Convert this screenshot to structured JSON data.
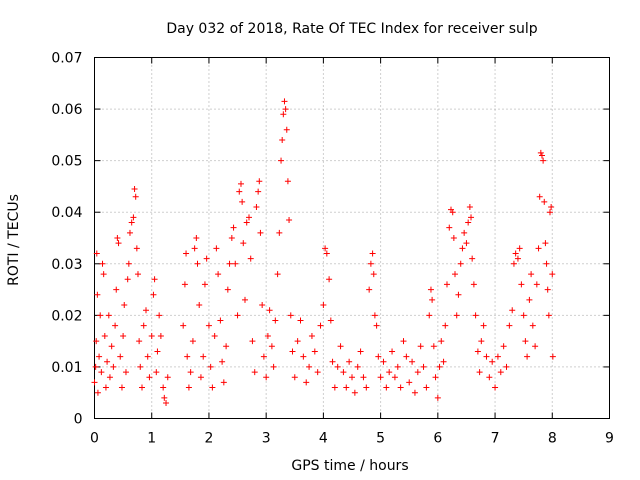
{
  "chart_data": {
    "type": "scatter",
    "title": "Day 032 of 2018, Rate Of TEC Index for receiver sulp",
    "xlabel": "GPS time / hours",
    "ylabel": "ROTI / TECUs",
    "xlim": [
      0,
      9
    ],
    "ylim": [
      0,
      0.07
    ],
    "xticks": [
      0,
      1,
      2,
      3,
      4,
      5,
      6,
      7,
      8,
      9
    ],
    "xtick_labels": [
      "0",
      "1",
      "2",
      "3",
      "4",
      "5",
      "6",
      "7",
      "8",
      "9"
    ],
    "yticks": [
      0,
      0.01,
      0.02,
      0.03,
      0.04,
      0.05,
      0.06,
      0.07
    ],
    "ytick_labels": [
      "0",
      "0.01",
      "0.02",
      "0.03",
      "0.04",
      "0.05",
      "0.06",
      "0.07"
    ],
    "grid": true,
    "marker": "+",
    "color": "#ff0000",
    "series": [
      {
        "name": "ROTI",
        "points": [
          [
            0.0,
            0.007
          ],
          [
            0.02,
            0.01
          ],
          [
            0.03,
            0.015
          ],
          [
            0.04,
            0.032
          ],
          [
            0.05,
            0.024
          ],
          [
            0.06,
            0.005
          ],
          [
            0.08,
            0.012
          ],
          [
            0.1,
            0.02
          ],
          [
            0.12,
            0.009
          ],
          [
            0.14,
            0.03
          ],
          [
            0.16,
            0.028
          ],
          [
            0.18,
            0.016
          ],
          [
            0.2,
            0.006
          ],
          [
            0.22,
            0.011
          ],
          [
            0.25,
            0.02
          ],
          [
            0.27,
            0.008
          ],
          [
            0.3,
            0.014
          ],
          [
            0.33,
            0.01
          ],
          [
            0.36,
            0.018
          ],
          [
            0.38,
            0.025
          ],
          [
            0.4,
            0.035
          ],
          [
            0.42,
            0.034
          ],
          [
            0.45,
            0.012
          ],
          [
            0.48,
            0.006
          ],
          [
            0.5,
            0.016
          ],
          [
            0.52,
            0.022
          ],
          [
            0.55,
            0.009
          ],
          [
            0.58,
            0.027
          ],
          [
            0.6,
            0.03
          ],
          [
            0.62,
            0.036
          ],
          [
            0.65,
            0.038
          ],
          [
            0.68,
            0.039
          ],
          [
            0.7,
            0.0445
          ],
          [
            0.72,
            0.043
          ],
          [
            0.74,
            0.033
          ],
          [
            0.76,
            0.028
          ],
          [
            0.78,
            0.015
          ],
          [
            0.8,
            0.01
          ],
          [
            0.83,
            0.006
          ],
          [
            0.86,
            0.018
          ],
          [
            0.9,
            0.021
          ],
          [
            0.93,
            0.012
          ],
          [
            0.96,
            0.008
          ],
          [
            1.0,
            0.016
          ],
          [
            1.03,
            0.024
          ],
          [
            1.05,
            0.027
          ],
          [
            1.08,
            0.009
          ],
          [
            1.1,
            0.013
          ],
          [
            1.13,
            0.02
          ],
          [
            1.16,
            0.016
          ],
          [
            1.2,
            0.006
          ],
          [
            1.22,
            0.004
          ],
          [
            1.25,
            0.003
          ],
          [
            1.28,
            0.008
          ],
          [
            1.55,
            0.018
          ],
          [
            1.58,
            0.026
          ],
          [
            1.6,
            0.032
          ],
          [
            1.62,
            0.012
          ],
          [
            1.65,
            0.006
          ],
          [
            1.68,
            0.009
          ],
          [
            1.72,
            0.015
          ],
          [
            1.75,
            0.033
          ],
          [
            1.78,
            0.035
          ],
          [
            1.8,
            0.03
          ],
          [
            1.83,
            0.022
          ],
          [
            1.86,
            0.008
          ],
          [
            1.9,
            0.012
          ],
          [
            1.93,
            0.026
          ],
          [
            1.96,
            0.031
          ],
          [
            2.0,
            0.018
          ],
          [
            2.03,
            0.01
          ],
          [
            2.06,
            0.006
          ],
          [
            2.1,
            0.016
          ],
          [
            2.13,
            0.033
          ],
          [
            2.16,
            0.028
          ],
          [
            2.2,
            0.019
          ],
          [
            2.23,
            0.011
          ],
          [
            2.26,
            0.007
          ],
          [
            2.3,
            0.014
          ],
          [
            2.33,
            0.025
          ],
          [
            2.36,
            0.03
          ],
          [
            2.4,
            0.035
          ],
          [
            2.43,
            0.037
          ],
          [
            2.46,
            0.03
          ],
          [
            2.5,
            0.02
          ],
          [
            2.53,
            0.044
          ],
          [
            2.56,
            0.0455
          ],
          [
            2.58,
            0.042
          ],
          [
            2.6,
            0.034
          ],
          [
            2.63,
            0.023
          ],
          [
            2.66,
            0.038
          ],
          [
            2.7,
            0.039
          ],
          [
            2.73,
            0.031
          ],
          [
            2.76,
            0.015
          ],
          [
            2.8,
            0.009
          ],
          [
            2.83,
            0.041
          ],
          [
            2.86,
            0.044
          ],
          [
            2.88,
            0.046
          ],
          [
            2.9,
            0.036
          ],
          [
            2.93,
            0.022
          ],
          [
            2.96,
            0.012
          ],
          [
            3.0,
            0.008
          ],
          [
            3.03,
            0.016
          ],
          [
            3.06,
            0.021
          ],
          [
            3.1,
            0.014
          ],
          [
            3.13,
            0.01
          ],
          [
            3.16,
            0.019
          ],
          [
            3.2,
            0.028
          ],
          [
            3.23,
            0.036
          ],
          [
            3.26,
            0.05
          ],
          [
            3.28,
            0.054
          ],
          [
            3.3,
            0.059
          ],
          [
            3.32,
            0.0615
          ],
          [
            3.34,
            0.06
          ],
          [
            3.36,
            0.056
          ],
          [
            3.38,
            0.046
          ],
          [
            3.4,
            0.0385
          ],
          [
            3.43,
            0.02
          ],
          [
            3.46,
            0.013
          ],
          [
            3.5,
            0.008
          ],
          [
            3.55,
            0.015
          ],
          [
            3.6,
            0.019
          ],
          [
            3.65,
            0.012
          ],
          [
            3.7,
            0.007
          ],
          [
            3.75,
            0.01
          ],
          [
            3.8,
            0.016
          ],
          [
            3.85,
            0.013
          ],
          [
            3.9,
            0.009
          ],
          [
            3.95,
            0.018
          ],
          [
            4.0,
            0.022
          ],
          [
            4.03,
            0.033
          ],
          [
            4.06,
            0.032
          ],
          [
            4.1,
            0.027
          ],
          [
            4.13,
            0.019
          ],
          [
            4.16,
            0.011
          ],
          [
            4.2,
            0.006
          ],
          [
            4.25,
            0.01
          ],
          [
            4.3,
            0.014
          ],
          [
            4.35,
            0.009
          ],
          [
            4.4,
            0.006
          ],
          [
            4.45,
            0.011
          ],
          [
            4.5,
            0.008
          ],
          [
            4.55,
            0.005
          ],
          [
            4.6,
            0.01
          ],
          [
            4.65,
            0.013
          ],
          [
            4.7,
            0.008
          ],
          [
            4.75,
            0.006
          ],
          [
            4.8,
            0.025
          ],
          [
            4.83,
            0.03
          ],
          [
            4.86,
            0.032
          ],
          [
            4.88,
            0.028
          ],
          [
            4.9,
            0.02
          ],
          [
            4.93,
            0.018
          ],
          [
            4.96,
            0.012
          ],
          [
            5.0,
            0.008
          ],
          [
            5.05,
            0.011
          ],
          [
            5.1,
            0.006
          ],
          [
            5.15,
            0.009
          ],
          [
            5.2,
            0.013
          ],
          [
            5.25,
            0.008
          ],
          [
            5.3,
            0.01
          ],
          [
            5.35,
            0.006
          ],
          [
            5.4,
            0.015
          ],
          [
            5.45,
            0.012
          ],
          [
            5.5,
            0.007
          ],
          [
            5.55,
            0.011
          ],
          [
            5.6,
            0.005
          ],
          [
            5.65,
            0.009
          ],
          [
            5.7,
            0.014
          ],
          [
            5.75,
            0.01
          ],
          [
            5.8,
            0.006
          ],
          [
            5.85,
            0.02
          ],
          [
            5.88,
            0.025
          ],
          [
            5.9,
            0.023
          ],
          [
            5.93,
            0.014
          ],
          [
            5.96,
            0.008
          ],
          [
            6.0,
            0.004
          ],
          [
            6.03,
            0.01
          ],
          [
            6.06,
            0.015
          ],
          [
            6.1,
            0.011
          ],
          [
            6.13,
            0.018
          ],
          [
            6.16,
            0.026
          ],
          [
            6.2,
            0.037
          ],
          [
            6.23,
            0.0405
          ],
          [
            6.26,
            0.04
          ],
          [
            6.28,
            0.035
          ],
          [
            6.3,
            0.028
          ],
          [
            6.33,
            0.02
          ],
          [
            6.36,
            0.024
          ],
          [
            6.4,
            0.03
          ],
          [
            6.43,
            0.033
          ],
          [
            6.46,
            0.036
          ],
          [
            6.5,
            0.034
          ],
          [
            6.53,
            0.038
          ],
          [
            6.56,
            0.041
          ],
          [
            6.58,
            0.039
          ],
          [
            6.6,
            0.031
          ],
          [
            6.63,
            0.026
          ],
          [
            6.66,
            0.02
          ],
          [
            6.7,
            0.013
          ],
          [
            6.73,
            0.009
          ],
          [
            6.76,
            0.015
          ],
          [
            6.8,
            0.018
          ],
          [
            6.85,
            0.012
          ],
          [
            6.9,
            0.008
          ],
          [
            6.95,
            0.011
          ],
          [
            7.0,
            0.006
          ],
          [
            7.05,
            0.012
          ],
          [
            7.1,
            0.009
          ],
          [
            7.15,
            0.014
          ],
          [
            7.2,
            0.01
          ],
          [
            7.25,
            0.018
          ],
          [
            7.3,
            0.021
          ],
          [
            7.33,
            0.03
          ],
          [
            7.36,
            0.032
          ],
          [
            7.4,
            0.031
          ],
          [
            7.43,
            0.033
          ],
          [
            7.46,
            0.026
          ],
          [
            7.5,
            0.02
          ],
          [
            7.53,
            0.015
          ],
          [
            7.56,
            0.012
          ],
          [
            7.6,
            0.023
          ],
          [
            7.63,
            0.028
          ],
          [
            7.66,
            0.018
          ],
          [
            7.7,
            0.014
          ],
          [
            7.73,
            0.026
          ],
          [
            7.76,
            0.033
          ],
          [
            7.78,
            0.043
          ],
          [
            7.8,
            0.0515
          ],
          [
            7.82,
            0.051
          ],
          [
            7.84,
            0.05
          ],
          [
            7.86,
            0.042
          ],
          [
            7.88,
            0.034
          ],
          [
            7.9,
            0.03
          ],
          [
            7.92,
            0.025
          ],
          [
            7.94,
            0.02
          ],
          [
            7.96,
            0.04
          ],
          [
            7.98,
            0.041
          ],
          [
            8.0,
            0.028
          ],
          [
            8.01,
            0.012
          ]
        ]
      }
    ]
  }
}
